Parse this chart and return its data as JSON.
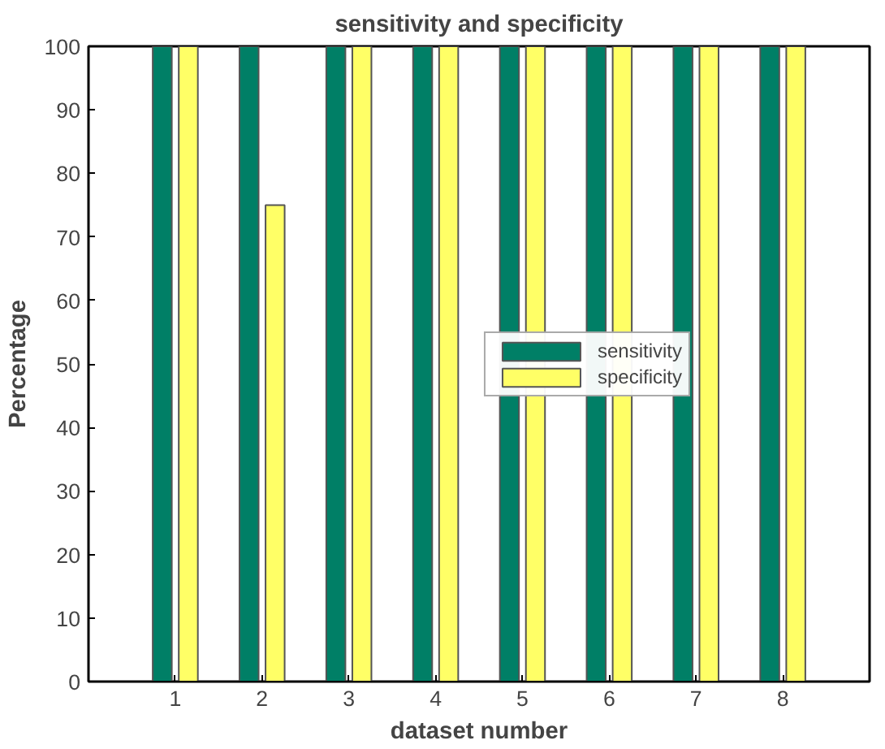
{
  "chart_data": {
    "type": "bar",
    "title": "sensitivity and specificity",
    "xlabel": "dataset number",
    "ylabel": "Percentage",
    "x": [
      1,
      2,
      3,
      4,
      5,
      6,
      7,
      8
    ],
    "xlim": [
      0,
      9
    ],
    "xticks": [
      1,
      2,
      3,
      4,
      5,
      6,
      7,
      8
    ],
    "ylim": [
      0,
      100
    ],
    "yticks": [
      0,
      10,
      20,
      30,
      40,
      50,
      60,
      70,
      80,
      90,
      100
    ],
    "series": [
      {
        "name": "sensitivity",
        "color": "#007f66",
        "values": [
          100,
          100,
          100,
          100,
          100,
          100,
          100,
          100
        ]
      },
      {
        "name": "specificity",
        "color": "#ffff66",
        "values": [
          100,
          75,
          100,
          100,
          100,
          100,
          100,
          100
        ]
      }
    ],
    "grid": false,
    "legend": "right"
  }
}
